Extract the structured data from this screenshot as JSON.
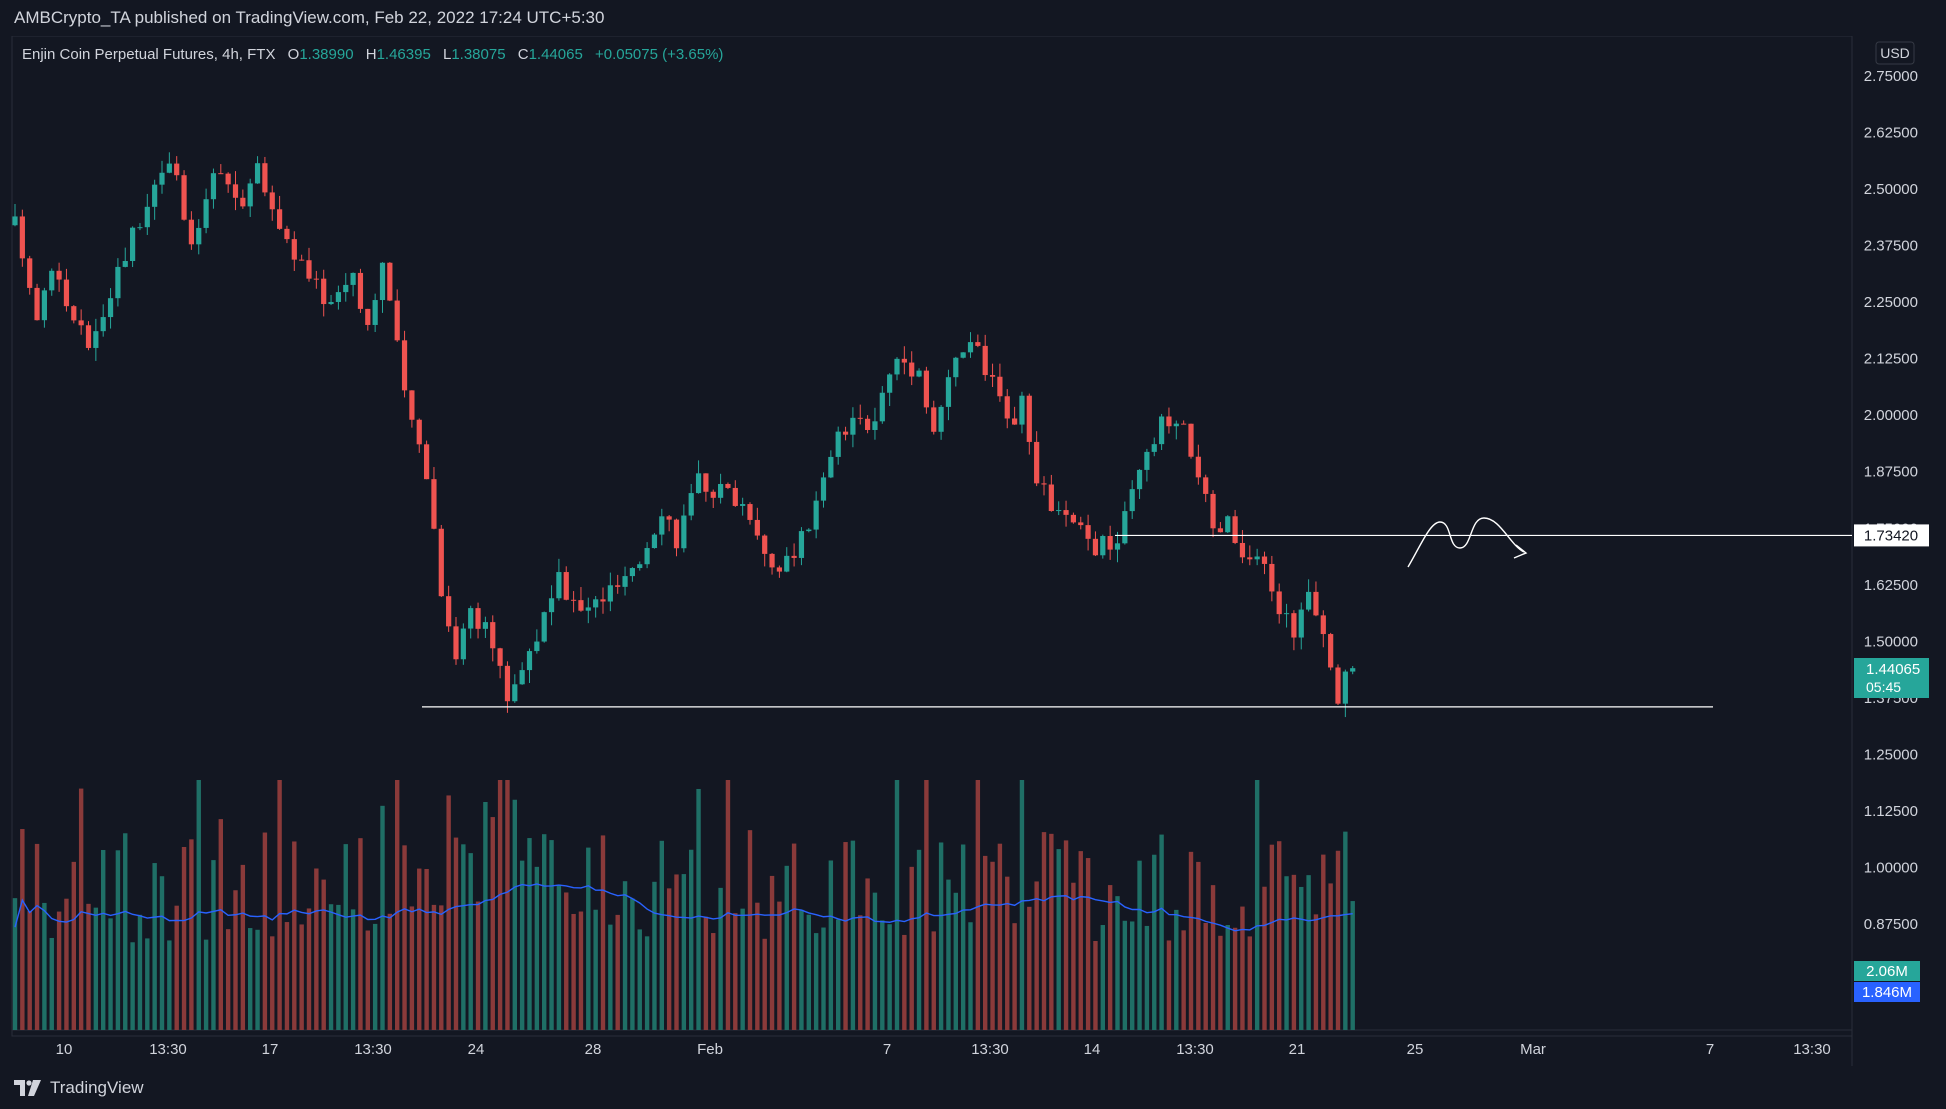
{
  "header": {
    "publisher_line": "AMBCrypto_TA published on TradingView.com, Feb 22, 2022 17:24 UTC+5:30"
  },
  "legend": {
    "title": "Enjin Coin Perpetual Futures, 4h, FTX",
    "o_label": "O",
    "o_value": "1.38990",
    "h_label": "H",
    "h_value": "1.46395",
    "l_label": "L",
    "l_value": "1.38075",
    "c_label": "C",
    "c_value": "1.44065",
    "change": "+0.05075 (+3.65%)"
  },
  "currency": "USD",
  "price_label": {
    "value": "1.44065",
    "countdown": "05:45"
  },
  "level_label": "1.73420",
  "volume_labels": {
    "volume": "2.06M",
    "volume_ma": "1.846M"
  },
  "footer": {
    "brand": "TradingView"
  },
  "colors": {
    "bg": "#131722",
    "up": "#26a69a",
    "down": "#ef5350",
    "text": "#d1d4dc",
    "ma": "#2962ff",
    "line": "#ffffff"
  },
  "chart_data": {
    "type": "candlestick",
    "symbol": "Enjin Coin Perpetual Futures",
    "interval": "4h",
    "exchange": "FTX",
    "y_ticks": [
      "2.75000",
      "2.62500",
      "2.50000",
      "2.37500",
      "2.25000",
      "2.12500",
      "2.00000",
      "1.87500",
      "1.75000",
      "1.62500",
      "1.50000",
      "1.37500",
      "1.25000",
      "1.12500",
      "1.00000",
      "0.87500"
    ],
    "x_ticks": [
      "10",
      "13:30",
      "17",
      "13:30",
      "24",
      "28",
      "Feb",
      "7",
      "13:30",
      "14",
      "13:30",
      "21",
      "25",
      "Mar",
      "7",
      "13:30"
    ],
    "horizontal_levels": [
      1.7342,
      1.355
    ],
    "price_path": [
      {
        "t": 0,
        "p": 2.42
      },
      {
        "t": 3,
        "p": 2.22
      },
      {
        "t": 5,
        "p": 2.34
      },
      {
        "t": 8,
        "p": 2.2
      },
      {
        "t": 10,
        "p": 2.16
      },
      {
        "t": 13,
        "p": 2.28
      },
      {
        "t": 18,
        "p": 2.48
      },
      {
        "t": 21,
        "p": 2.58
      },
      {
        "t": 24,
        "p": 2.36
      },
      {
        "t": 27,
        "p": 2.53
      },
      {
        "t": 31,
        "p": 2.48
      },
      {
        "t": 33,
        "p": 2.54
      },
      {
        "t": 36,
        "p": 2.42
      },
      {
        "t": 40,
        "p": 2.3
      },
      {
        "t": 43,
        "p": 2.25
      },
      {
        "t": 46,
        "p": 2.32
      },
      {
        "t": 48,
        "p": 2.2
      },
      {
        "t": 50,
        "p": 2.34
      },
      {
        "t": 51,
        "p": 2.25
      },
      {
        "t": 53,
        "p": 2.04
      },
      {
        "t": 56,
        "p": 1.88
      },
      {
        "t": 58,
        "p": 1.62
      },
      {
        "t": 60,
        "p": 1.47
      },
      {
        "t": 62,
        "p": 1.58
      },
      {
        "t": 65,
        "p": 1.49
      },
      {
        "t": 67,
        "p": 1.38
      },
      {
        "t": 70,
        "p": 1.48
      },
      {
        "t": 72,
        "p": 1.55
      },
      {
        "t": 74,
        "p": 1.63
      },
      {
        "t": 77,
        "p": 1.56
      },
      {
        "t": 80,
        "p": 1.6
      },
      {
        "t": 84,
        "p": 1.64
      },
      {
        "t": 88,
        "p": 1.8
      },
      {
        "t": 90,
        "p": 1.73
      },
      {
        "t": 93,
        "p": 1.85
      },
      {
        "t": 97,
        "p": 1.83
      },
      {
        "t": 100,
        "p": 1.79
      },
      {
        "t": 103,
        "p": 1.67
      },
      {
        "t": 106,
        "p": 1.68
      },
      {
        "t": 109,
        "p": 1.8
      },
      {
        "t": 112,
        "p": 1.95
      },
      {
        "t": 115,
        "p": 1.98
      },
      {
        "t": 117,
        "p": 2.0
      },
      {
        "t": 120,
        "p": 2.13
      },
      {
        "t": 123,
        "p": 2.1
      },
      {
        "t": 125,
        "p": 1.97
      },
      {
        "t": 128,
        "p": 2.12
      },
      {
        "t": 130,
        "p": 2.17
      },
      {
        "t": 133,
        "p": 2.07
      },
      {
        "t": 135,
        "p": 1.97
      },
      {
        "t": 137,
        "p": 2.02
      },
      {
        "t": 139,
        "p": 1.85
      },
      {
        "t": 142,
        "p": 1.78
      },
      {
        "t": 145,
        "p": 1.74
      },
      {
        "t": 147,
        "p": 1.71
      },
      {
        "t": 150,
        "p": 1.72
      },
      {
        "t": 153,
        "p": 1.87
      },
      {
        "t": 156,
        "p": 1.98
      },
      {
        "t": 159,
        "p": 1.96
      },
      {
        "t": 161,
        "p": 1.88
      },
      {
        "t": 163,
        "p": 1.73
      },
      {
        "t": 165,
        "p": 1.76
      },
      {
        "t": 167,
        "p": 1.68
      },
      {
        "t": 170,
        "p": 1.66
      },
      {
        "t": 172,
        "p": 1.57
      },
      {
        "t": 174,
        "p": 1.53
      },
      {
        "t": 176,
        "p": 1.6
      },
      {
        "t": 178,
        "p": 1.5
      },
      {
        "t": 180,
        "p": 1.38
      },
      {
        "t": 182,
        "p": 1.44065
      }
    ]
  }
}
